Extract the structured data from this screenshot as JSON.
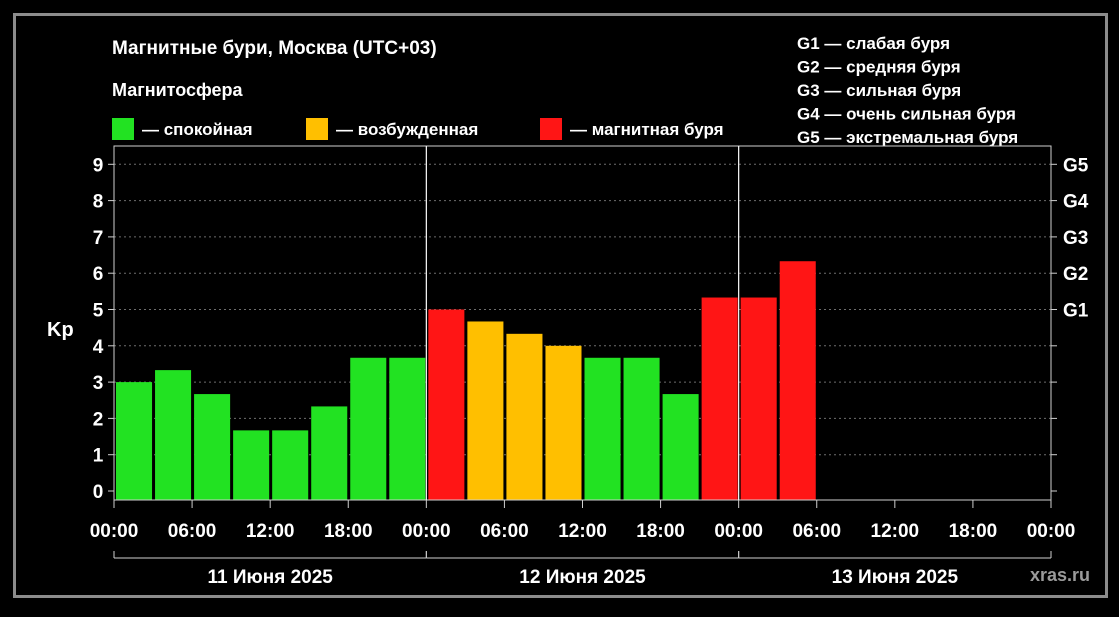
{
  "chart_data": {
    "type": "bar",
    "title": "Магнитные бури, Москва (UTC+03)",
    "ylabel": "Kp",
    "ylim": [
      0,
      9
    ],
    "yticks": [
      0,
      1,
      2,
      3,
      4,
      5,
      6,
      7,
      8,
      9
    ],
    "storm_levels": [
      {
        "label": "G1",
        "kp": 5
      },
      {
        "label": "G2",
        "kp": 6
      },
      {
        "label": "G3",
        "kp": 7
      },
      {
        "label": "G4",
        "kp": 8
      },
      {
        "label": "G5",
        "kp": 9
      }
    ],
    "storm_legend": [
      "G1 — слабая буря",
      "G2 — средняя буря",
      "G3 — сильная буря",
      "G4 — очень сильная буря",
      "G5 — экстремальная буря"
    ],
    "legend": {
      "title": "Магнитосфера",
      "items": [
        {
          "label": "— спокойная",
          "color": "#22e222"
        },
        {
          "label": "— возбужденная",
          "color": "#ffbf00"
        },
        {
          "label": "— магнитная буря",
          "color": "#ff1515"
        }
      ]
    },
    "days": [
      "11 Июня 2025",
      "12 Июня 2025",
      "13 Июня 2025"
    ],
    "time_labels": [
      "00:00",
      "06:00",
      "12:00",
      "18:00",
      "00:00",
      "06:00",
      "12:00",
      "18:00",
      "00:00",
      "06:00",
      "12:00",
      "18:00",
      "00:00"
    ],
    "values": [
      3.0,
      3.33,
      2.67,
      1.67,
      1.67,
      2.33,
      3.67,
      3.67,
      5.0,
      4.67,
      4.33,
      4.0,
      3.67,
      3.67,
      2.67,
      5.33,
      5.33,
      6.33
    ],
    "grid": true,
    "watermark": "xras.ru"
  }
}
